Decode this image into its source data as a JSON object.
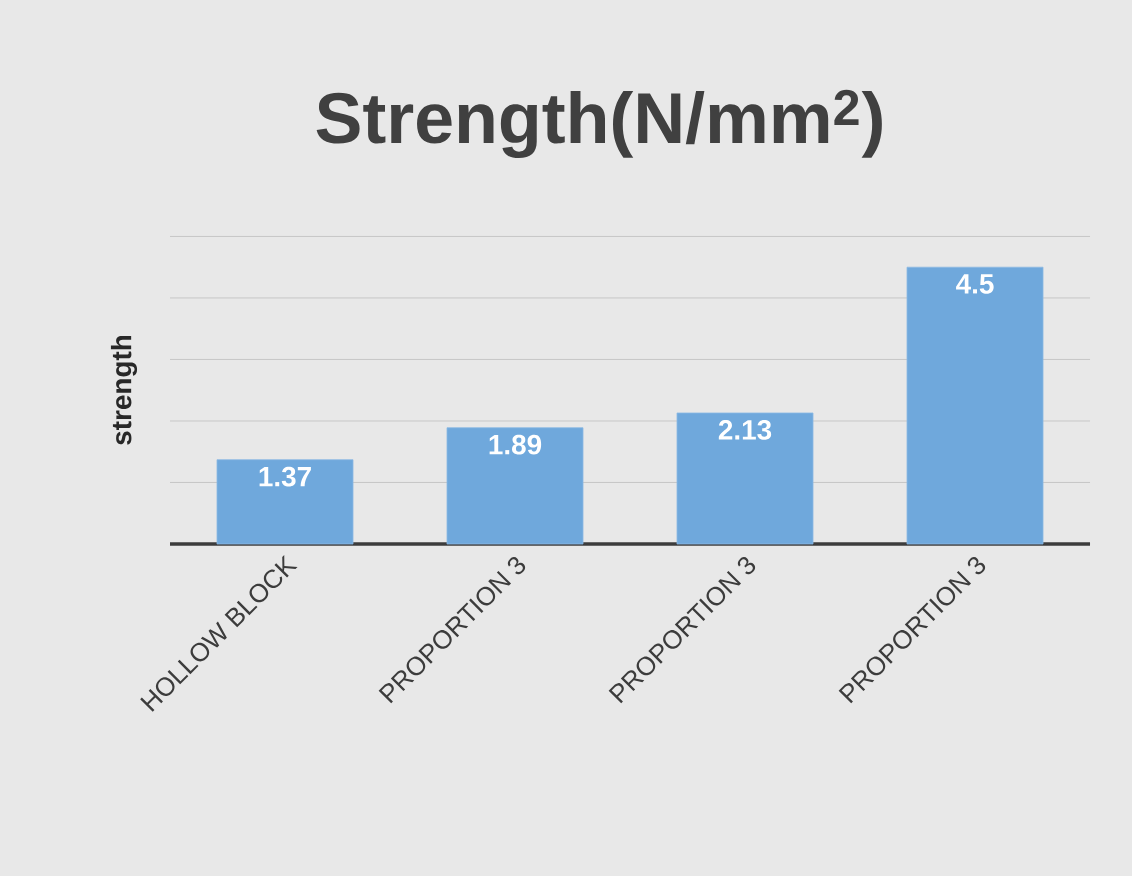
{
  "chart_data": {
    "type": "bar",
    "title": "Strength(N/mm$^{2}$)",
    "ylabel": "strength",
    "categories": [
      "HOLLOW BLOCK",
      "PROPORTION 3",
      "PROPORTION 3",
      "PROPORTION 3"
    ],
    "values": [
      1.37,
      1.89,
      2.13,
      4.5
    ],
    "color": "#6fa8dc",
    "grid": "y",
    "tick_labels": "x",
    "data_labels": true
  }
}
